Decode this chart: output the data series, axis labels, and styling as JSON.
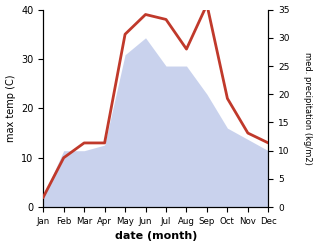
{
  "months": [
    "Jan",
    "Feb",
    "Mar",
    "Apr",
    "May",
    "Jun",
    "Jul",
    "Aug",
    "Sep",
    "Oct",
    "Nov",
    "Dec"
  ],
  "temp_max": [
    2,
    10,
    13,
    13,
    35,
    39,
    38,
    32,
    41,
    22,
    15,
    13
  ],
  "precipitation": [
    2,
    10,
    10,
    11,
    27,
    30,
    25,
    25,
    20,
    14,
    12,
    10
  ],
  "temp_color": "#c0392b",
  "precip_color": "#b8c4e8",
  "precip_alpha": 0.75,
  "temp_ylim": [
    0,
    40
  ],
  "precip_ylim": [
    0,
    35
  ],
  "temp_yticks": [
    0,
    10,
    20,
    30,
    40
  ],
  "precip_yticks": [
    0,
    5,
    10,
    15,
    20,
    25,
    30,
    35
  ],
  "ylabel_left": "max temp (C)",
  "ylabel_right": "med. precipitation (kg/m2)",
  "xlabel": "date (month)",
  "linewidth": 2.0
}
